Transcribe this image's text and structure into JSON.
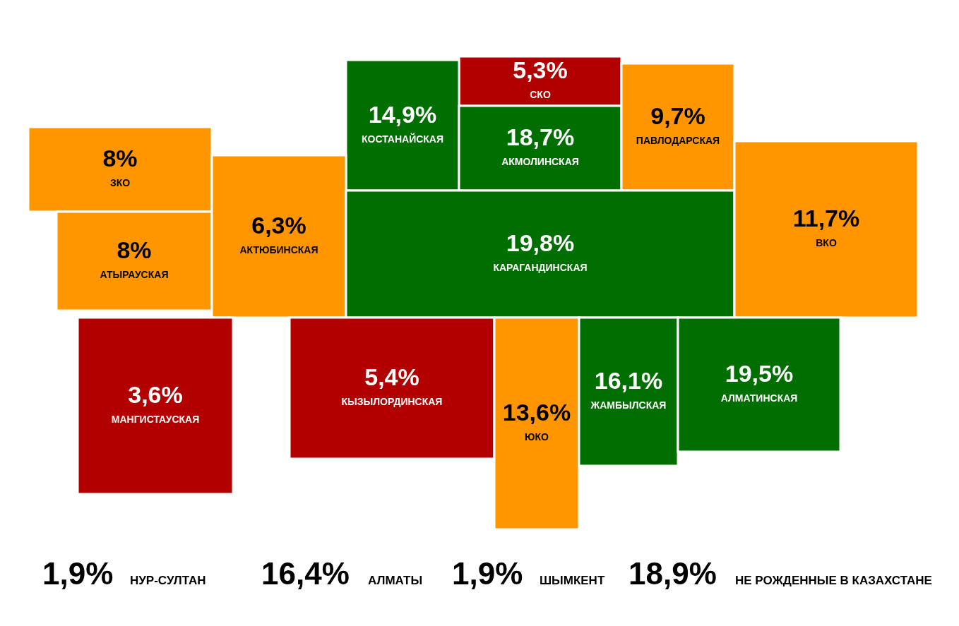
{
  "chart_data": {
    "type": "other",
    "categories": [
      "СКО",
      "КОСТАНАЙСКАЯ",
      "АКМОЛИНСКАЯ",
      "ПАВЛОДАРСКАЯ",
      "ЗКО",
      "АТЫРАУСКАЯ",
      "АКТЮБИНСКАЯ",
      "КАРАГАНДИНСКАЯ",
      "ВКО",
      "МАНГИСТАУСКАЯ",
      "КЫЗЫЛОРДИНСКАЯ",
      "ЮКО",
      "ЖАМБЫЛСКАЯ",
      "АЛМАТИНСКАЯ"
    ],
    "values": [
      5.3,
      14.9,
      18.7,
      9.7,
      8,
      8,
      6.3,
      19.8,
      11.7,
      3.6,
      5.4,
      13.6,
      16.1,
      19.5
    ],
    "value_labels": [
      "5,3%",
      "14,9%",
      "18,7%",
      "9,7%",
      "8%",
      "8%",
      "6,3%",
      "19,8%",
      "11,7%",
      "3,6%",
      "5,4%",
      "13,6%",
      "16,1%",
      "19,5%"
    ],
    "colors": [
      "#b20000",
      "#006e00",
      "#006e00",
      "#ff9600",
      "#ff9600",
      "#ff9600",
      "#ff9600",
      "#006e00",
      "#ff9600",
      "#b20000",
      "#b20000",
      "#ff9600",
      "#006e00",
      "#006e00"
    ],
    "annotations": [
      "1,9% НУР-СУЛТАН",
      "16,4% АЛМАТЫ",
      "1,9% ШЫМКЕНТ",
      "18,9% НЕ РОЖДЕННЫЕ В КАЗАХСТАНЕ"
    ]
  }
}
